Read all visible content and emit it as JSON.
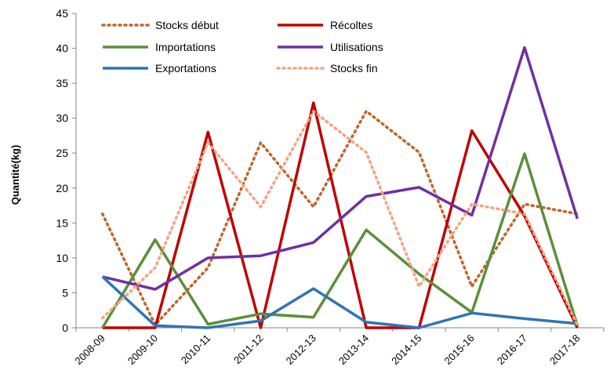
{
  "chart_data": {
    "type": "line",
    "ylabel": "Quantité(kg)",
    "ylim": [
      0,
      45
    ],
    "yticks": [
      0,
      5,
      10,
      15,
      20,
      25,
      30,
      35,
      40,
      45
    ],
    "grid": false,
    "legend_position": "top",
    "categories": [
      "2008-09",
      "2009-10",
      "2010-11",
      "2011-12",
      "2012-13",
      "2013-14",
      "2014-15",
      "2015-16",
      "2016-17",
      "2017-18"
    ],
    "series": [
      {
        "name": "Stocks début",
        "color": "#C0652B",
        "style": "dotted",
        "values": [
          16.3,
          0.4,
          8.6,
          26.5,
          17.3,
          31.0,
          25.1,
          5.9,
          17.7,
          16.3
        ]
      },
      {
        "name": "Récoltes",
        "color": "#C00000",
        "style": "solid",
        "values": [
          0,
          0,
          28,
          0,
          32.2,
          0,
          0,
          28.2,
          16,
          0
        ]
      },
      {
        "name": "Importations",
        "color": "#5B8F3A",
        "style": "solid",
        "values": [
          0,
          12.6,
          0.5,
          2,
          1.5,
          14,
          7.7,
          2.2,
          24.9,
          0.3
        ]
      },
      {
        "name": "Utilisations",
        "color": "#7030A0",
        "style": "solid",
        "values": [
          7.3,
          5.5,
          10,
          10.3,
          12.2,
          18.8,
          20.1,
          16.1,
          40.1,
          15.6
        ]
      },
      {
        "name": "Exportations",
        "color": "#2E75B6",
        "style": "solid",
        "values": [
          7.3,
          0.3,
          0,
          1,
          5.6,
          0.8,
          0,
          2.1,
          1.3,
          0.6
        ]
      },
      {
        "name": "Stocks fin",
        "color": "#F4A582",
        "style": "dotted",
        "values": [
          1.4,
          8.6,
          26.5,
          17.3,
          31.0,
          25.1,
          5.9,
          17.7,
          16.3,
          0.4
        ]
      }
    ]
  }
}
